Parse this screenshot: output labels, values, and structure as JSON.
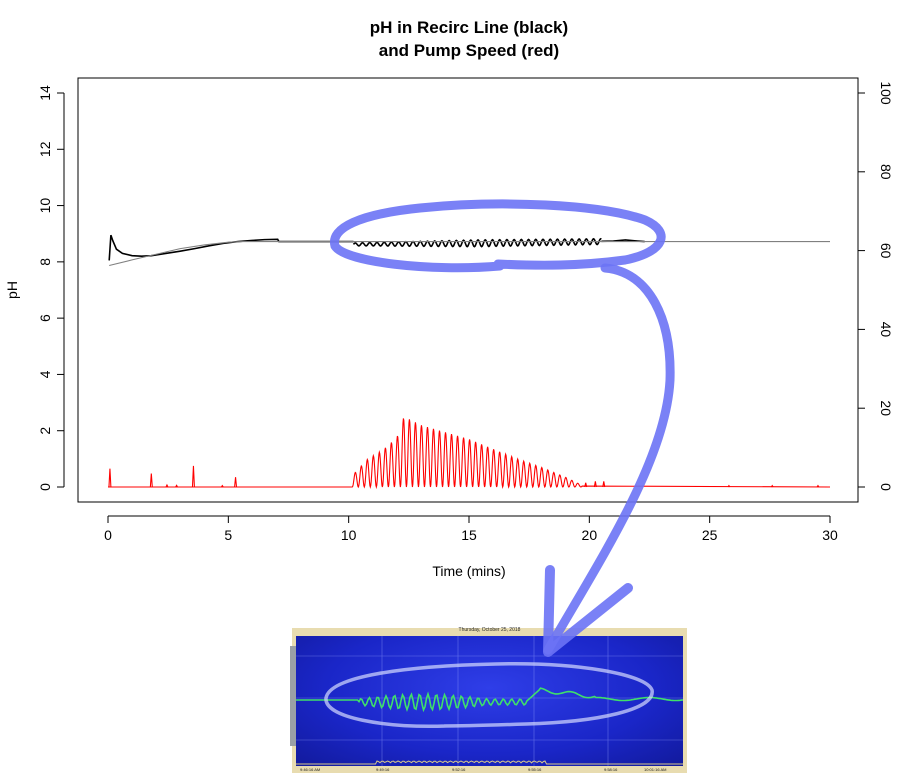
{
  "chart_data": {
    "type": "line",
    "title": "pH in Recirc Line (black)\nand Pump Speed (red)",
    "title_lines": [
      "pH in Recirc Line (black)",
      "and Pump Speed (red)"
    ],
    "xlabel": "Time (mins)",
    "ylabel": "pH",
    "xlim": [
      0,
      30
    ],
    "ylim": [
      0,
      14
    ],
    "y2lim": [
      0,
      100
    ],
    "xticks": [
      0,
      5,
      10,
      15,
      20,
      25,
      30
    ],
    "yticks": [
      0,
      2,
      4,
      6,
      8,
      10,
      12,
      14
    ],
    "y2ticks": [
      0,
      20,
      40,
      60,
      80,
      100
    ],
    "grid": false,
    "series": [
      {
        "axis": "left",
        "color": "#000000",
        "segments": [
          {
            "type": "points",
            "x": [
              0.05,
              0.12,
              0.2,
              0.35,
              0.6,
              1.0,
              1.4,
              1.8,
              2.4,
              3.0,
              3.6,
              4.2,
              4.8,
              5.4,
              6.0,
              6.5,
              7.05,
              7.1,
              8.0,
              9.0,
              10.0,
              10.2
            ],
            "y": [
              8.05,
              8.95,
              8.75,
              8.45,
              8.3,
              8.22,
              8.2,
              8.22,
              8.3,
              8.38,
              8.47,
              8.57,
              8.66,
              8.72,
              8.76,
              8.79,
              8.8,
              8.72,
              8.72,
              8.72,
              8.72,
              8.72
            ]
          },
          {
            "type": "oscillation",
            "x_start": 10.2,
            "x_end": 20.5,
            "period": 0.3,
            "center": [
              8.62,
              8.66,
              8.72
            ],
            "amplitude": [
              0.05,
              0.12,
              0.1
            ]
          },
          {
            "type": "points",
            "x": [
              20.5,
              21.0,
              21.5,
              22.0,
              22.3
            ],
            "y": [
              8.73,
              8.74,
              8.78,
              8.74,
              8.72
            ]
          }
        ]
      },
      {
        "axis": "left",
        "color": "#808080",
        "segments": [
          {
            "type": "points",
            "x": [
              0.05,
              1.0,
              2.0,
              3.0,
              4.0,
              5.0,
              5.6,
              30.0
            ],
            "y": [
              7.87,
              8.07,
              8.27,
              8.47,
              8.6,
              8.7,
              8.72,
              8.72
            ]
          }
        ]
      },
      {
        "axis": "left",
        "color": "#ff0000",
        "baseline": 0,
        "spikes": [
          {
            "x": 0.08,
            "y": 0.65
          },
          {
            "x": 1.8,
            "y": 0.48
          },
          {
            "x": 3.55,
            "y": 0.75
          },
          {
            "x": 5.3,
            "y": 0.35
          },
          {
            "x": 2.45,
            "y": 0.07
          },
          {
            "x": 2.85,
            "y": 0.06
          },
          {
            "x": 4.75,
            "y": 0.05
          },
          {
            "x": 19.85,
            "y": 0.15
          },
          {
            "x": 20.25,
            "y": 0.2
          },
          {
            "x": 20.6,
            "y": 0.2
          },
          {
            "x": 25.8,
            "y": 0.05
          },
          {
            "x": 27.6,
            "y": 0.05
          },
          {
            "x": 29.5,
            "y": 0.05
          }
        ],
        "burst": {
          "x_start": 10.15,
          "x_end": 19.7,
          "period": 0.25,
          "peaks": [
            [
              10.15,
              0.4
            ],
            [
              10.8,
              1.0
            ],
            [
              11.4,
              1.3
            ],
            [
              12.0,
              1.75
            ],
            [
              12.3,
              2.5
            ],
            [
              13.0,
              2.2
            ],
            [
              14.0,
              1.95
            ],
            [
              15.0,
              1.7
            ],
            [
              16.0,
              1.35
            ],
            [
              17.0,
              1.0
            ],
            [
              18.0,
              0.7
            ],
            [
              19.0,
              0.35
            ],
            [
              19.6,
              0.1
            ]
          ]
        }
      }
    ],
    "annotations": [
      {
        "type": "hand-drawn-ellipse",
        "color": "#6b73f5"
      },
      {
        "type": "hand-drawn-arrow",
        "color": "#6b73f5"
      }
    ]
  },
  "inset": {
    "header": "Thursday, October 25, 2018",
    "time_labels": [
      "9:46:16 AM",
      "9:49:16",
      "9:52:16",
      "9:55:16",
      "9:58:16",
      "10:01:16 AM"
    ]
  }
}
